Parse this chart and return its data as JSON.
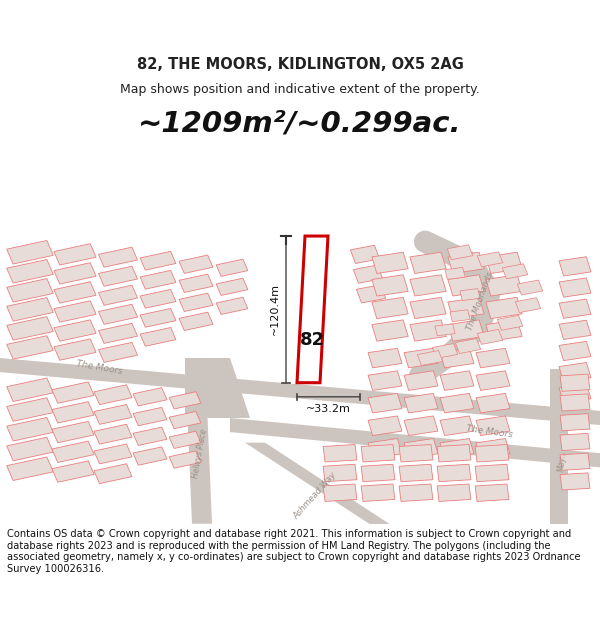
{
  "title": "82, THE MOORS, KIDLINGTON, OX5 2AG",
  "subtitle": "Map shows position and indicative extent of the property.",
  "area_text": "~1209m²/~0.299ac.",
  "dim_width": "~33.2m",
  "dim_height": "~120.4m",
  "label_number": "82",
  "footer": "Contains OS data © Crown copyright and database right 2021. This information is subject to Crown copyright and database rights 2023 and is reproduced with the permission of HM Land Registry. The polygons (including the associated geometry, namely x, y co-ordinates) are subject to Crown copyright and database rights 2023 Ordnance Survey 100026316.",
  "map_bg": "#ffffff",
  "road_fill": "#d8d0cc",
  "building_stroke": "#e88080",
  "building_fill": "#e8dcd8",
  "highlight_stroke": "#cc0000",
  "highlight_fill": "#ffffff",
  "title_color": "#222222",
  "footer_color": "#111111",
  "area_color": "#111111",
  "road_label_color": "#999088",
  "dim_line_color": "#444444"
}
